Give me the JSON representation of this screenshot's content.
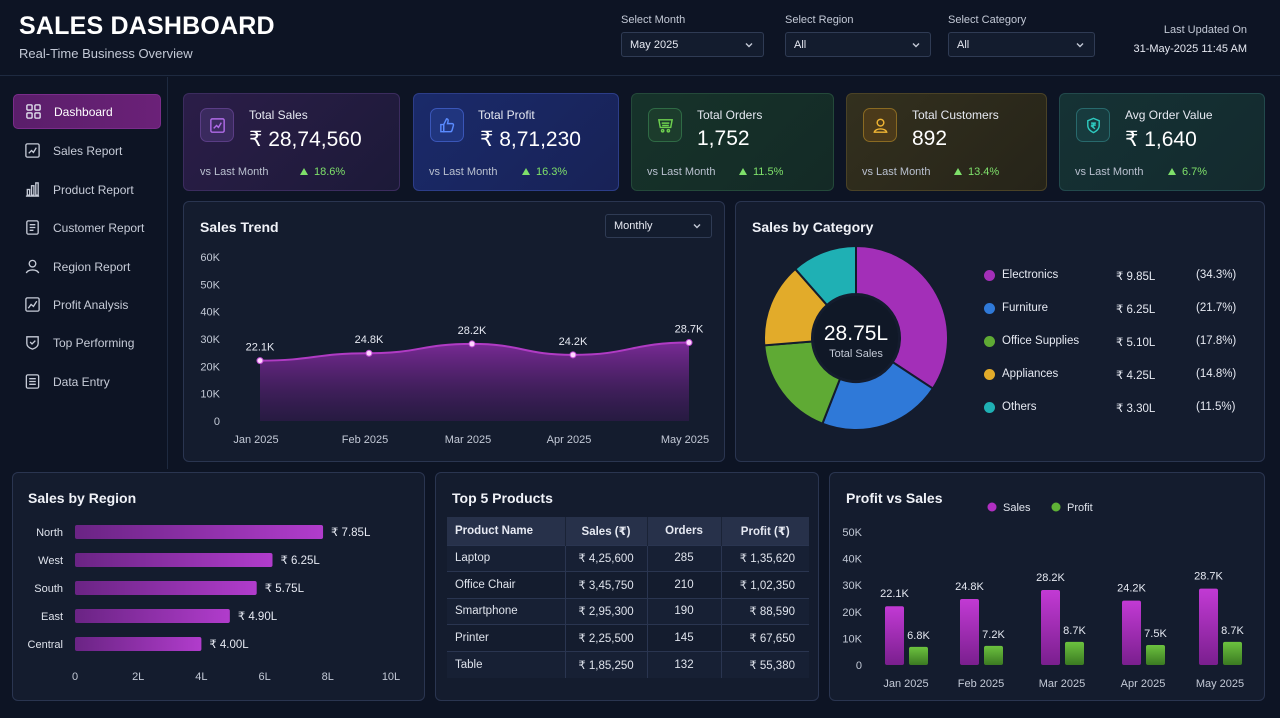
{
  "header": {
    "title": "SALES DASHBOARD",
    "subtitle": "Real-Time Business Overview",
    "filters": [
      {
        "label": "Select Month",
        "value": "May 2025"
      },
      {
        "label": "Select Region",
        "value": "All"
      },
      {
        "label": "Select Category",
        "value": "All"
      }
    ],
    "updated_label": "Last Updated On",
    "updated_value": "31-May-2025 11:45 AM"
  },
  "sidebar": {
    "items": [
      {
        "label": "Dashboard",
        "icon": "grid-icon",
        "active": true
      },
      {
        "label": "Sales Report",
        "icon": "chart-line-icon"
      },
      {
        "label": "Product Report",
        "icon": "bar-chart-icon"
      },
      {
        "label": "Customer Report",
        "icon": "report-icon"
      },
      {
        "label": "Region Report",
        "icon": "user-icon"
      },
      {
        "label": "Profit Analysis",
        "icon": "trend-icon"
      },
      {
        "label": "Top Performing",
        "icon": "medal-icon"
      },
      {
        "label": "Data Entry",
        "icon": "list-icon"
      }
    ]
  },
  "kpis": [
    {
      "label": "Total Sales",
      "value": "₹ 28,74,560",
      "vs": "vs Last Month",
      "delta": "18.6%",
      "color": "#a23ad8",
      "icon": "sales-chart-icon"
    },
    {
      "label": "Total Profit",
      "value": "₹ 8,71,230",
      "vs": "vs Last Month",
      "delta": "16.3%",
      "color": "#3b6cf2",
      "icon": "thumbs-up-icon"
    },
    {
      "label": "Total Orders",
      "value": "1,752",
      "vs": "vs Last Month",
      "delta": "11.5%",
      "color": "#5fc04a",
      "icon": "cart-icon"
    },
    {
      "label": "Total Customers",
      "value": "892",
      "vs": "vs Last Month",
      "delta": "13.4%",
      "color": "#e3a52a",
      "icon": "user-icon"
    },
    {
      "label": "Avg Order Value",
      "value": "₹ 1,640",
      "vs": "vs Last Month",
      "delta": "6.7%",
      "color": "#1fb5ad",
      "icon": "shield-rupee-icon"
    }
  ],
  "sales_trend": {
    "title": "Sales Trend",
    "period": "Monthly",
    "chart_data": {
      "type": "area",
      "categories": [
        "Jan 2025",
        "Feb 2025",
        "Mar 2025",
        "Apr 2025",
        "May 2025"
      ],
      "values": [
        22.1,
        24.8,
        28.2,
        24.2,
        28.7
      ],
      "labels": [
        "22.1K",
        "24.8K",
        "28.2K",
        "24.2K",
        "28.7K"
      ],
      "yticks": [
        "0",
        "10K",
        "20K",
        "30K",
        "40K",
        "50K",
        "60K"
      ],
      "ylim": [
        0,
        60
      ],
      "color": "#b03bc4"
    }
  },
  "sales_by_category": {
    "title": "Sales by Category",
    "center_value": "28.75L",
    "center_label": "Total Sales",
    "chart_data": {
      "type": "pie",
      "items": [
        {
          "name": "Electronics",
          "value": "₹ 9.85L",
          "pct": "(34.3%)",
          "share": 34.3,
          "color": "#a32fb8"
        },
        {
          "name": "Furniture",
          "value": "₹ 6.25L",
          "pct": "(21.7%)",
          "share": 21.7,
          "color": "#2f79d8"
        },
        {
          "name": "Office Supplies",
          "value": "₹ 5.10L",
          "pct": "(17.8%)",
          "share": 17.8,
          "color": "#5faa34"
        },
        {
          "name": "Appliances",
          "value": "₹ 4.25L",
          "pct": "(14.8%)",
          "share": 14.8,
          "color": "#e2ab2a"
        },
        {
          "name": "Others",
          "value": "₹ 3.30L",
          "pct": "(11.5%)",
          "share": 11.5,
          "color": "#1fb0b4"
        }
      ]
    }
  },
  "sales_by_region": {
    "title": "Sales by Region",
    "chart_data": {
      "type": "bar",
      "categories": [
        "North",
        "West",
        "South",
        "East",
        "Central"
      ],
      "values": [
        7.85,
        6.25,
        5.75,
        4.9,
        4.0
      ],
      "labels": [
        "₹ 7.85L",
        "₹ 6.25L",
        "₹ 5.75L",
        "₹ 4.90L",
        "₹ 4.00L"
      ],
      "xticks": [
        "0",
        "2L",
        "4L",
        "6L",
        "8L",
        "10L"
      ],
      "xlim": [
        0,
        10
      ],
      "color": "#a93ac0"
    }
  },
  "top_products": {
    "title": "Top 5 Products",
    "columns": [
      "Product Name",
      "Sales (₹)",
      "Orders",
      "Profit (₹)"
    ],
    "rows": [
      [
        "Laptop",
        "₹ 4,25,600",
        "285",
        "₹ 1,35,620"
      ],
      [
        "Office Chair",
        "₹ 3,45,750",
        "210",
        "₹ 1,02,350"
      ],
      [
        "Smartphone",
        "₹ 2,95,300",
        "190",
        "₹ 88,590"
      ],
      [
        "Printer",
        "₹ 2,25,500",
        "145",
        "₹ 67,650"
      ],
      [
        "Table",
        "₹ 1,85,250",
        "132",
        "₹ 55,380"
      ]
    ]
  },
  "profit_vs_sales": {
    "title": "Profit vs Sales",
    "chart_data": {
      "type": "bar",
      "categories": [
        "Jan 2025",
        "Feb 2025",
        "Mar 2025",
        "Apr 2025",
        "May 2025"
      ],
      "yticks": [
        "0",
        "10K",
        "20K",
        "30K",
        "40K",
        "50K"
      ],
      "ylim": [
        0,
        50
      ],
      "series": [
        {
          "name": "Sales",
          "values": [
            22.1,
            24.8,
            28.2,
            24.2,
            28.7
          ],
          "labels": [
            "22.1K",
            "24.8K",
            "28.2K",
            "24.2K",
            "28.7K"
          ],
          "color": "#b02fc1"
        },
        {
          "name": "Profit",
          "values": [
            6.8,
            7.2,
            8.7,
            7.5,
            8.7
          ],
          "labels": [
            "6.8K",
            "7.2K",
            "8.7K",
            "7.5K",
            "8.7K"
          ],
          "color": "#5fb236"
        }
      ]
    }
  }
}
